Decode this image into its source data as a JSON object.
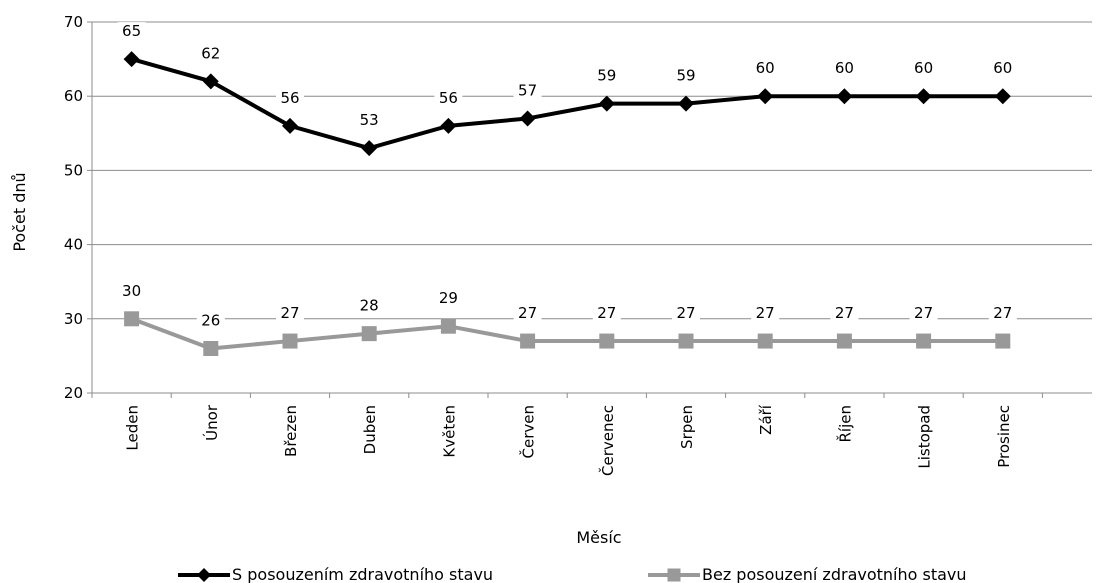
{
  "chart_data": {
    "type": "line",
    "categories": [
      "Leden",
      "Únor",
      "Březen",
      "Duben",
      "Květen",
      "Červen",
      "Červenec",
      "Srpen",
      "Září",
      "Říjen",
      "Listopad",
      "Prosinec"
    ],
    "series": [
      {
        "name": "S posouzením zdravotního stavu",
        "values": [
          65,
          62,
          56,
          53,
          56,
          57,
          59,
          59,
          60,
          60,
          60,
          60
        ],
        "color": "#000000",
        "marker": "diamond"
      },
      {
        "name": "Bez posouzení zdravotního stavu",
        "values": [
          30,
          26,
          27,
          28,
          29,
          27,
          27,
          27,
          27,
          27,
          27,
          27
        ],
        "color": "#999999",
        "marker": "square"
      }
    ],
    "title": "",
    "xlabel": "Měsíc",
    "ylabel": "Počet dnů",
    "ylim": [
      20,
      70
    ],
    "yticks": [
      20,
      30,
      40,
      50,
      60,
      70
    ],
    "grid": true,
    "legend_position": "bottom"
  }
}
